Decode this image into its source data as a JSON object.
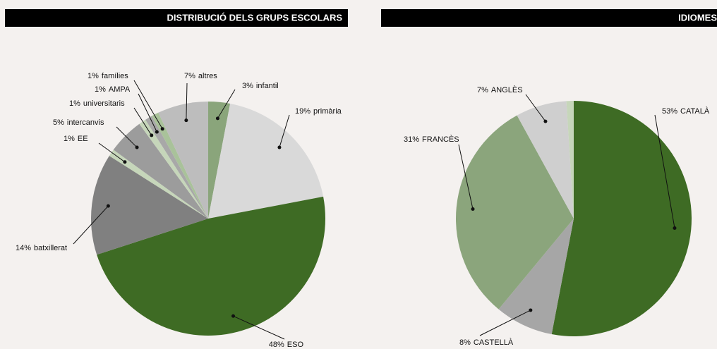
{
  "chart_data": [
    {
      "type": "pie",
      "title": "DISTRIBUCIÓ DELS GRUPS ESCOLARS",
      "categories": [
        "infantil",
        "primària",
        "ESO",
        "batxillerat",
        "EE",
        "intercanvis",
        "universitaris",
        "AMPA",
        "famílies",
        "altres"
      ],
      "values": [
        3,
        19,
        48,
        14,
        1,
        5,
        1,
        1,
        1,
        7
      ],
      "value_labels": [
        "3%",
        "19%",
        "48%",
        "14%",
        "1%",
        "5%",
        "1%",
        "1%",
        "1%",
        "7%"
      ],
      "colors": [
        "#8aa57b",
        "#d9d9d9",
        "#3e6b24",
        "#808080",
        "#c6d6ba",
        "#9c9c9c",
        "#c6d6ba",
        "#a8a8a8",
        "#a9c29a",
        "#bdbdbd"
      ]
    },
    {
      "type": "pie",
      "title": "IDIOMES",
      "categories": [
        "CATALÀ",
        "CASTELLÀ",
        "FRANCÈS",
        "ANGLÈS",
        null
      ],
      "values": [
        53,
        8,
        31,
        7,
        1
      ],
      "value_labels": [
        "53%",
        "8%",
        "31%",
        "7%",
        null
      ],
      "colors": [
        "#3e6b24",
        "#a6a6a6",
        "#8ba57c",
        "#cfcfcf",
        "#c6d6ba"
      ]
    }
  ]
}
